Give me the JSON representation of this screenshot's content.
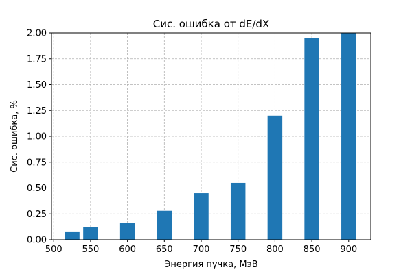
{
  "chart_data": {
    "type": "bar",
    "title": "Сис. ошибка от dE/dX",
    "xlabel": "Энергия пучка, МэВ",
    "ylabel": "Сис. ошибка, %",
    "x": [
      525,
      550,
      600,
      650,
      700,
      750,
      800,
      850,
      900
    ],
    "values": [
      0.08,
      0.12,
      0.16,
      0.28,
      0.45,
      0.55,
      1.2,
      1.95,
      2.0
    ],
    "bar_width": 20,
    "xlim": [
      497,
      930
    ],
    "ylim": [
      0,
      2.0
    ],
    "xticks": [
      500,
      550,
      600,
      650,
      700,
      750,
      800,
      850,
      900
    ],
    "yticks": [
      0.0,
      0.25,
      0.5,
      0.75,
      1.0,
      1.25,
      1.5,
      1.75,
      2.0
    ],
    "xtick_labels": [
      "500",
      "550",
      "600",
      "650",
      "700",
      "750",
      "800",
      "850",
      "900"
    ],
    "ytick_labels": [
      "0.00",
      "0.25",
      "0.50",
      "0.75",
      "1.00",
      "1.25",
      "1.50",
      "1.75",
      "2.00"
    ],
    "grid": true,
    "bar_color": "#1f77b4",
    "grid_color": "#b0b0b0"
  }
}
